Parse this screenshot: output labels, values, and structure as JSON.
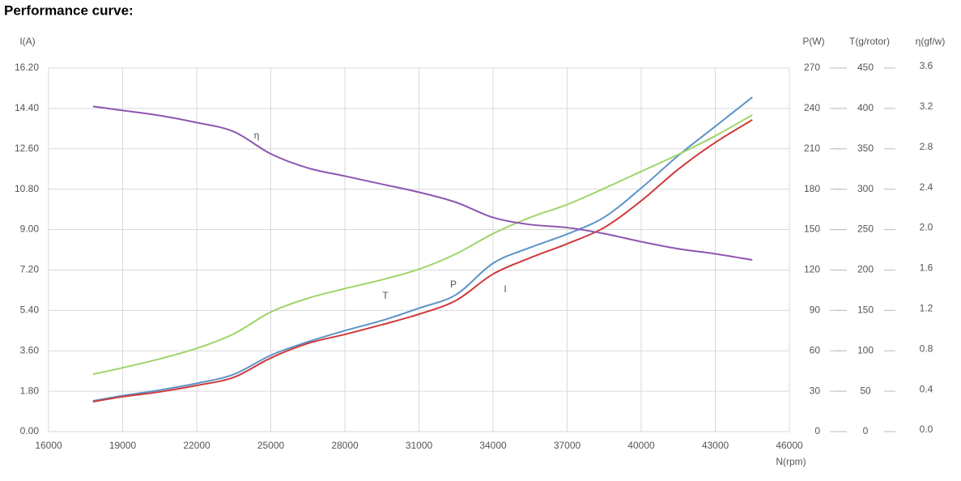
{
  "chart_data": {
    "type": "line",
    "title": "Performance curve:",
    "xlabel": "N(rpm)",
    "x": [
      17800,
      19000,
      20500,
      22000,
      23500,
      25000,
      26500,
      28000,
      29500,
      31000,
      32500,
      34000,
      35500,
      37000,
      38500,
      40000,
      41500,
      43000,
      44500
    ],
    "xlim": [
      16000,
      46000
    ],
    "xticks": [
      16000,
      19000,
      22000,
      25000,
      28000,
      31000,
      34000,
      37000,
      40000,
      43000,
      46000
    ],
    "grid": true,
    "axes": [
      {
        "id": "y",
        "label": "I(A)",
        "color": "#4a86c0",
        "lim": [
          0,
          16.2
        ],
        "ticks": [
          {
            "value": 0,
            "label": "0.00"
          },
          {
            "value": 1.8,
            "label": "1.80"
          },
          {
            "value": 3.6,
            "label": "3.60"
          },
          {
            "value": 5.4,
            "label": "5.40"
          },
          {
            "value": 7.2,
            "label": "7.20"
          },
          {
            "value": 9,
            "label": "9.00"
          },
          {
            "value": 10.8,
            "label": "10.80"
          },
          {
            "value": 12.6,
            "label": "12.60"
          },
          {
            "value": 14.4,
            "label": "14.40"
          },
          {
            "value": 16.2,
            "label": "16.20"
          }
        ]
      },
      {
        "id": "y2",
        "label": "P(W)",
        "color": "#c8282a",
        "lim": [
          0,
          270
        ],
        "ticks": [
          0,
          30,
          60,
          90,
          120,
          150,
          180,
          210,
          240,
          270
        ]
      },
      {
        "id": "y3",
        "label": "T(g/rotor)",
        "color": "#8cc85a",
        "lim": [
          0,
          450
        ],
        "ticks": [
          0,
          50,
          100,
          150,
          200,
          250,
          300,
          350,
          400,
          450
        ]
      },
      {
        "id": "y4",
        "label": "η(gf/w)",
        "color": "#7d3c98",
        "lim": [
          0,
          3.6
        ],
        "ticks": [
          {
            "value": 0,
            "label": "0.0"
          },
          {
            "value": 0.4,
            "label": "0.4"
          },
          {
            "value": 0.8,
            "label": "0.8"
          },
          {
            "value": 1.2,
            "label": "1.2"
          },
          {
            "value": 1.6,
            "label": "1.6"
          },
          {
            "value": 2,
            "label": "2.0"
          },
          {
            "value": 2.4,
            "label": "2.4"
          },
          {
            "value": 2.8,
            "label": "2.8"
          },
          {
            "value": 3.2,
            "label": "3.2"
          },
          {
            "value": 3.6,
            "label": "3.6"
          }
        ]
      }
    ],
    "series": [
      {
        "name": "I",
        "axis": "y",
        "color": "#5b94c8",
        "values": [
          1.37,
          1.6,
          1.85,
          2.15,
          2.55,
          3.4,
          4.0,
          4.5,
          4.95,
          5.5,
          6.1,
          7.5,
          8.2,
          8.8,
          9.55,
          10.85,
          12.3,
          13.6,
          14.9
        ]
      },
      {
        "name": "P",
        "axis": "y2",
        "color": "#d0393b",
        "values": [
          22.2,
          25.9,
          29.5,
          34.3,
          40.3,
          54.7,
          65.5,
          72.2,
          79.4,
          87.2,
          97.4,
          117,
          129,
          139.5,
          151.5,
          171.4,
          194.8,
          214.7,
          231.5
        ]
      },
      {
        "name": "T",
        "axis": "y3",
        "color": "#9fd46b",
        "values": [
          71,
          79,
          90,
          103,
          121,
          148,
          165,
          177,
          188,
          201,
          220,
          245,
          265,
          281,
          301,
          322,
          343,
          366,
          392
        ]
      },
      {
        "name": "η",
        "axis": "y4",
        "color": "#8e55b0",
        "values": [
          3.22,
          3.18,
          3.13,
          3.06,
          2.97,
          2.75,
          2.61,
          2.53,
          2.45,
          2.37,
          2.27,
          2.12,
          2.05,
          2.02,
          1.96,
          1.88,
          1.81,
          1.76,
          1.7
        ]
      }
    ]
  }
}
